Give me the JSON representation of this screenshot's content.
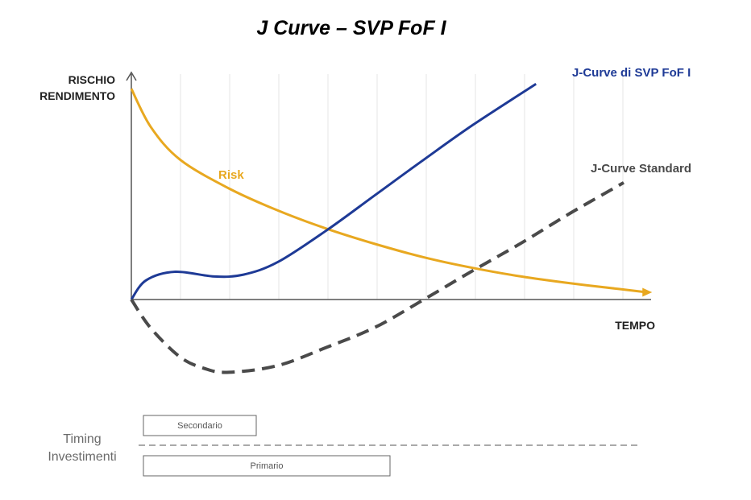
{
  "chart_data": {
    "type": "line",
    "title": "J Curve – SVP FoF I",
    "ylabel_lines": [
      "RISCHIO",
      "RENDIMENTO"
    ],
    "xlabel": "TEMPO",
    "y_axis_ticks_shown": false,
    "x_axis_ticks_shown": false,
    "grid": "vertical",
    "series": [
      {
        "name": "Risk",
        "color": "#E8A820",
        "style": "solid",
        "points": [
          [
            0,
            22
          ],
          [
            0.4,
            18
          ],
          [
            1,
            14.6
          ],
          [
            2,
            11.6
          ],
          [
            3,
            9.3
          ],
          [
            4,
            7.4
          ],
          [
            5,
            5.8
          ],
          [
            6,
            4.4
          ],
          [
            7,
            3.3
          ],
          [
            8,
            2.4
          ],
          [
            9,
            1.7
          ],
          [
            10,
            1.1
          ],
          [
            10.5,
            0.8
          ]
        ]
      },
      {
        "name": "J-Curve di SVP FoF I",
        "color": "#1E3A96",
        "style": "solid",
        "points": [
          [
            0,
            0
          ],
          [
            0.3,
            2
          ],
          [
            0.9,
            2.9
          ],
          [
            1.7,
            2.4
          ],
          [
            2.3,
            2.6
          ],
          [
            3,
            3.9
          ],
          [
            4,
            7.2
          ],
          [
            5,
            10.9
          ],
          [
            6,
            14.6
          ],
          [
            7,
            18.2
          ],
          [
            8.3,
            22.5
          ]
        ]
      },
      {
        "name": "J-Curve Standard",
        "color": "#4A4A4A",
        "style": "dashed",
        "points": [
          [
            0,
            0
          ],
          [
            0.4,
            -3
          ],
          [
            1,
            -6
          ],
          [
            1.5,
            -7.2
          ],
          [
            2,
            -7.6
          ],
          [
            3,
            -6.9
          ],
          [
            4,
            -5
          ],
          [
            5,
            -2.9
          ],
          [
            6,
            0
          ],
          [
            7,
            3
          ],
          [
            8,
            5.9
          ],
          [
            9,
            9
          ],
          [
            10.1,
            12.2
          ]
        ]
      }
    ]
  },
  "timing": {
    "label_line1": "Timing",
    "label_line2": "Investimenti",
    "secondary_label": "Secondario",
    "primary_label": "Primario"
  }
}
